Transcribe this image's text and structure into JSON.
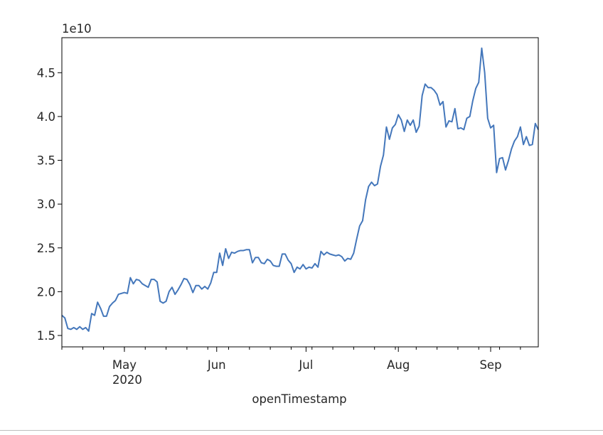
{
  "chart_data": {
    "type": "line",
    "title": "",
    "xlabel": "openTimestamp",
    "ylabel": "",
    "y_offset_label": "1e10",
    "x_range": [
      "2020-04-10",
      "2020-09-17"
    ],
    "ylim": [
      1.37,
      4.9
    ],
    "grid": false,
    "line_color": "#4477bb",
    "x_ticks": [
      {
        "date": "2020-05-01",
        "label": "May",
        "sublabel": "2020"
      },
      {
        "date": "2020-06-01",
        "label": "Jun",
        "sublabel": ""
      },
      {
        "date": "2020-07-01",
        "label": "Jul",
        "sublabel": ""
      },
      {
        "date": "2020-08-01",
        "label": "Aug",
        "sublabel": ""
      },
      {
        "date": "2020-09-01",
        "label": "Sep",
        "sublabel": ""
      }
    ],
    "y_ticks": [
      {
        "value": 1.5,
        "label": "1.5"
      },
      {
        "value": 2.0,
        "label": "2.0"
      },
      {
        "value": 2.5,
        "label": "2.5"
      },
      {
        "value": 3.0,
        "label": "3.0"
      },
      {
        "value": 3.5,
        "label": "3.5"
      },
      {
        "value": 4.0,
        "label": "4.0"
      },
      {
        "value": 4.5,
        "label": "4.5"
      }
    ],
    "series": [
      {
        "x": [
          "2020-04-10",
          "2020-04-11",
          "2020-04-12",
          "2020-04-13",
          "2020-04-14",
          "2020-04-15",
          "2020-04-16",
          "2020-04-17",
          "2020-04-18",
          "2020-04-19",
          "2020-04-20",
          "2020-04-21",
          "2020-04-22",
          "2020-04-23",
          "2020-04-24",
          "2020-04-25",
          "2020-04-26",
          "2020-04-27",
          "2020-04-28",
          "2020-04-29",
          "2020-04-30",
          "2020-05-01",
          "2020-05-02",
          "2020-05-03",
          "2020-05-04",
          "2020-05-05",
          "2020-05-06",
          "2020-05-07",
          "2020-05-08",
          "2020-05-09",
          "2020-05-10",
          "2020-05-11",
          "2020-05-12",
          "2020-05-13",
          "2020-05-14",
          "2020-05-15",
          "2020-05-16",
          "2020-05-17",
          "2020-05-18",
          "2020-05-19",
          "2020-05-20",
          "2020-05-21",
          "2020-05-22",
          "2020-05-23",
          "2020-05-24",
          "2020-05-25",
          "2020-05-26",
          "2020-05-27",
          "2020-05-28",
          "2020-05-29",
          "2020-05-30",
          "2020-05-31",
          "2020-06-01",
          "2020-06-02",
          "2020-06-03",
          "2020-06-04",
          "2020-06-05",
          "2020-06-06",
          "2020-06-07",
          "2020-06-08",
          "2020-06-09",
          "2020-06-10",
          "2020-06-11",
          "2020-06-12",
          "2020-06-13",
          "2020-06-14",
          "2020-06-15",
          "2020-06-16",
          "2020-06-17",
          "2020-06-18",
          "2020-06-19",
          "2020-06-20",
          "2020-06-21",
          "2020-06-22",
          "2020-06-23",
          "2020-06-24",
          "2020-06-25",
          "2020-06-26",
          "2020-06-27",
          "2020-06-28",
          "2020-06-29",
          "2020-06-30",
          "2020-07-01",
          "2020-07-02",
          "2020-07-03",
          "2020-07-04",
          "2020-07-05",
          "2020-07-06",
          "2020-07-07",
          "2020-07-08",
          "2020-07-09",
          "2020-07-10",
          "2020-07-11",
          "2020-07-12",
          "2020-07-13",
          "2020-07-14",
          "2020-07-15",
          "2020-07-16",
          "2020-07-17",
          "2020-07-18",
          "2020-07-19",
          "2020-07-20",
          "2020-07-21",
          "2020-07-22",
          "2020-07-23",
          "2020-07-24",
          "2020-07-25",
          "2020-07-26",
          "2020-07-27",
          "2020-07-28",
          "2020-07-29",
          "2020-07-30",
          "2020-07-31",
          "2020-08-01",
          "2020-08-02",
          "2020-08-03",
          "2020-08-04",
          "2020-08-05",
          "2020-08-06",
          "2020-08-07",
          "2020-08-08",
          "2020-08-09",
          "2020-08-10",
          "2020-08-11",
          "2020-08-12",
          "2020-08-13",
          "2020-08-14",
          "2020-08-15",
          "2020-08-16",
          "2020-08-17",
          "2020-08-18",
          "2020-08-19",
          "2020-08-20",
          "2020-08-21",
          "2020-08-22",
          "2020-08-23",
          "2020-08-24",
          "2020-08-25",
          "2020-08-26",
          "2020-08-27",
          "2020-08-28",
          "2020-08-29",
          "2020-08-30",
          "2020-08-31",
          "2020-09-01",
          "2020-09-02",
          "2020-09-03",
          "2020-09-04",
          "2020-09-05",
          "2020-09-06",
          "2020-09-07",
          "2020-09-08",
          "2020-09-09",
          "2020-09-10",
          "2020-09-11",
          "2020-09-12",
          "2020-09-13",
          "2020-09-14",
          "2020-09-15",
          "2020-09-16",
          "2020-09-17"
        ],
        "y": [
          1.73,
          1.7,
          1.58,
          1.57,
          1.59,
          1.57,
          1.6,
          1.57,
          1.59,
          1.55,
          1.75,
          1.73,
          1.88,
          1.81,
          1.72,
          1.72,
          1.83,
          1.87,
          1.9,
          1.97,
          1.98,
          1.99,
          1.98,
          2.16,
          2.09,
          2.14,
          2.13,
          2.09,
          2.07,
          2.05,
          2.14,
          2.14,
          2.11,
          1.89,
          1.87,
          1.89,
          2.0,
          2.05,
          1.97,
          2.02,
          2.08,
          2.15,
          2.14,
          2.08,
          1.99,
          2.07,
          2.07,
          2.03,
          2.06,
          2.03,
          2.1,
          2.22,
          2.22,
          2.44,
          2.3,
          2.49,
          2.38,
          2.45,
          2.44,
          2.46,
          2.47,
          2.47,
          2.48,
          2.48,
          2.33,
          2.39,
          2.39,
          2.33,
          2.32,
          2.37,
          2.35,
          2.3,
          2.29,
          2.29,
          2.43,
          2.43,
          2.36,
          2.32,
          2.22,
          2.28,
          2.26,
          2.31,
          2.26,
          2.28,
          2.27,
          2.32,
          2.28,
          2.46,
          2.42,
          2.45,
          2.43,
          2.42,
          2.41,
          2.42,
          2.4,
          2.35,
          2.38,
          2.37,
          2.44,
          2.6,
          2.75,
          2.81,
          3.05,
          3.2,
          3.25,
          3.21,
          3.23,
          3.43,
          3.56,
          3.88,
          3.74,
          3.87,
          3.91,
          4.02,
          3.96,
          3.83,
          3.96,
          3.9,
          3.96,
          3.82,
          3.89,
          4.24,
          4.37,
          4.33,
          4.33,
          4.3,
          4.25,
          4.13,
          4.17,
          3.88,
          3.95,
          3.94,
          4.09,
          3.86,
          3.87,
          3.85,
          3.98,
          4.0,
          4.18,
          4.32,
          4.39,
          4.78,
          4.5,
          3.98,
          3.87,
          3.9,
          3.36,
          3.52,
          3.53,
          3.39,
          3.5,
          3.63,
          3.72,
          3.77,
          3.88,
          3.68,
          3.77,
          3.67,
          3.68,
          3.92,
          3.85
        ]
      }
    ]
  }
}
